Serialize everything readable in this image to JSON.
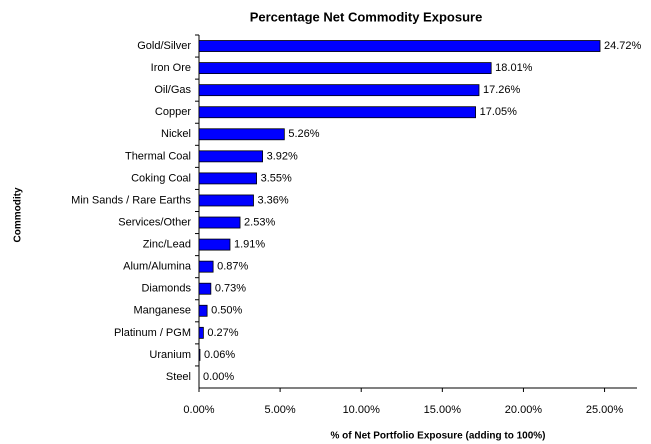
{
  "chart_data": {
    "type": "bar",
    "orientation": "horizontal",
    "title": "Percentage Net Commodity Exposure",
    "x_label": "% of Net Portfolio Exposure (adding to 100%)",
    "y_label": "Commodity",
    "categories": [
      "Gold/Silver",
      "Iron Ore",
      "Oil/Gas",
      "Copper",
      "Nickel",
      "Thermal Coal",
      "Coking Coal",
      "Min Sands / Rare Earths",
      "Services/Other",
      "Zinc/Lead",
      "Alum/Alumina",
      "Diamonds",
      "Manganese",
      "Platinum / PGM",
      "Uranium",
      "Steel"
    ],
    "values": [
      24.72,
      18.01,
      17.26,
      17.05,
      5.26,
      3.92,
      3.55,
      3.36,
      2.53,
      1.91,
      0.87,
      0.73,
      0.5,
      0.27,
      0.06,
      0.0
    ],
    "value_labels": [
      "24.72%",
      "18.01%",
      "17.26%",
      "17.05%",
      "5.26%",
      "3.92%",
      "3.55%",
      "3.36%",
      "2.53%",
      "1.91%",
      "0.87%",
      "0.73%",
      "0.50%",
      "0.27%",
      "0.06%",
      "0.00%"
    ],
    "color": "#0000ff",
    "xlim": [
      0,
      27
    ],
    "xticks": [
      {
        "value": 0,
        "label": "0.00%"
      },
      {
        "value": 5,
        "label": "5.00%"
      },
      {
        "value": 10,
        "label": "10.00%"
      },
      {
        "value": 15,
        "label": "15.00%"
      },
      {
        "value": 20,
        "label": "20.00%"
      },
      {
        "value": 25,
        "label": "25.00%"
      }
    ],
    "grid": false
  }
}
